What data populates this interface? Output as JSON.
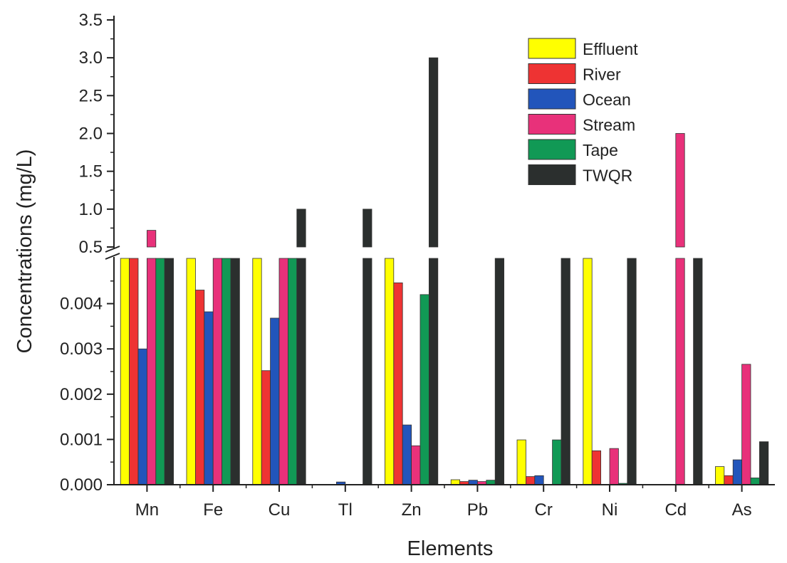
{
  "chart_data": {
    "type": "bar",
    "xlabel": "Elements",
    "ylabel": "Concentrations (mg/L)",
    "categories": [
      "Mn",
      "Fe",
      "Cu",
      "Tl",
      "Zn",
      "Pb",
      "Cr",
      "Ni",
      "Cd",
      "As"
    ],
    "axis_break": true,
    "y_lower": {
      "range": [
        0,
        0.005
      ],
      "ticks": [
        0.0,
        0.001,
        0.002,
        0.003,
        0.004
      ],
      "tick_labels": [
        "0.000",
        "0.001",
        "0.002",
        "0.003",
        "0.004"
      ]
    },
    "y_upper": {
      "range": [
        0.5,
        3.5
      ],
      "ticks": [
        0.5,
        1.0,
        1.5,
        2.0,
        2.5,
        3.0,
        3.5
      ],
      "tick_labels": [
        "0.5",
        "1.0",
        "1.5",
        "2.0",
        "2.5",
        "3.0",
        "3.5"
      ]
    },
    "legend_position": "top-right",
    "series": [
      {
        "name": "Effluent",
        "color": "#ffff00",
        "values": [
          0.05,
          0.05,
          0.05,
          0.0,
          0.05,
          0.00011,
          0.00099,
          0.05,
          0.0,
          0.0004
        ]
      },
      {
        "name": "River",
        "color": "#ee3333",
        "values": [
          0.05,
          0.0043,
          0.00252,
          0.0,
          0.00446,
          7e-05,
          0.00018,
          0.00075,
          0.0,
          0.0002
        ]
      },
      {
        "name": "Ocean",
        "color": "#2255bb",
        "values": [
          0.003,
          0.00382,
          0.00368,
          6e-05,
          0.00132,
          0.0001,
          0.0002,
          0.0,
          0.0,
          0.00055
        ]
      },
      {
        "name": "Stream",
        "color": "#e8317a",
        "values": [
          0.72,
          0.05,
          0.05,
          0.0,
          0.00086,
          7e-05,
          0.0,
          0.0008,
          2.0,
          0.00266
        ]
      },
      {
        "name": "Tape",
        "color": "#119955",
        "values": [
          0.05,
          0.05,
          0.05,
          0.0,
          0.0042,
          0.0001,
          0.00099,
          3e-05,
          0.0,
          0.00015
        ]
      },
      {
        "name": "TWQR",
        "color": "#2b2f2e",
        "values": [
          0.05,
          0.05,
          1.0,
          1.0,
          3.0,
          0.05,
          0.05,
          0.05,
          0.05,
          0.00095
        ]
      }
    ]
  }
}
